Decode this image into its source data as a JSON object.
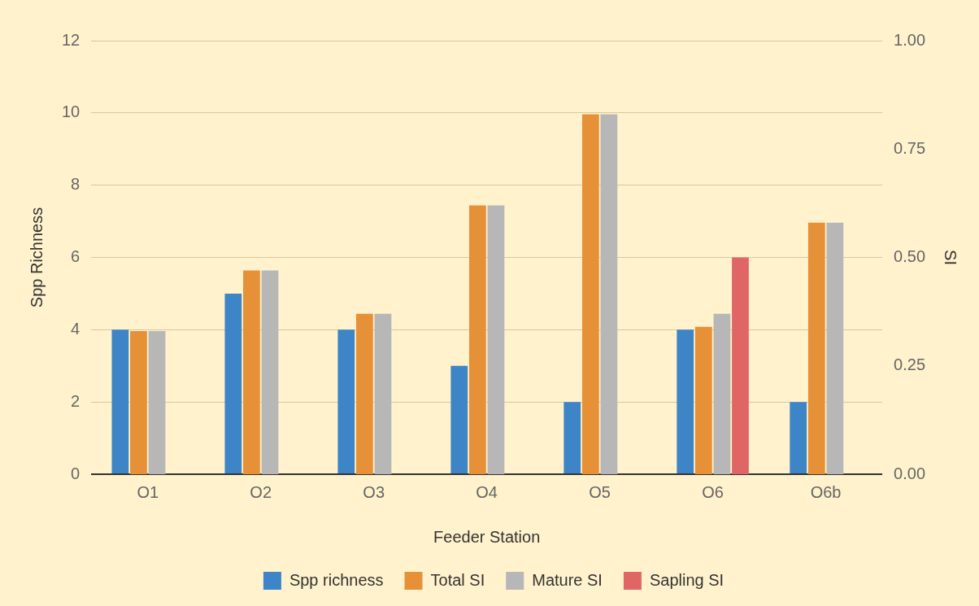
{
  "chart_data": {
    "type": "bar",
    "xlabel": "Feeder Station",
    "ylabel": "Spp Richness",
    "y2label": "SI",
    "categories": [
      "O1",
      "O2",
      "O3",
      "O4",
      "O5",
      "O6",
      "O6b"
    ],
    "series": [
      {
        "name": "Spp richness",
        "color": "#3d85c6",
        "values": [
          4,
          5,
          4,
          3,
          2,
          4,
          2
        ]
      },
      {
        "name": "Total SI",
        "color": "#e69138",
        "axis": "y2",
        "values": [
          0.33,
          0.47,
          0.37,
          0.62,
          0.83,
          0.34,
          0.58
        ]
      },
      {
        "name": "Mature SI",
        "color": "#b7b7b7",
        "axis": "y2",
        "values": [
          0.33,
          0.47,
          0.37,
          0.62,
          0.83,
          0.37,
          0.58
        ]
      },
      {
        "name": "Sapling SI",
        "color": "#e06666",
        "axis": "y2",
        "values": [
          null,
          null,
          null,
          null,
          null,
          0.5,
          null
        ]
      }
    ],
    "ylim": [
      0,
      12
    ],
    "yticks": [
      0,
      2,
      4,
      6,
      8,
      10,
      12
    ],
    "y2lim": [
      0,
      1
    ],
    "y2ticks": [
      {
        "value": 0,
        "label": "0.00"
      },
      {
        "value": 0.25,
        "label": "0.25"
      },
      {
        "value": 0.5,
        "label": "0.50"
      },
      {
        "value": 0.75,
        "label": "0.75"
      },
      {
        "value": 1,
        "label": "1.00"
      }
    ],
    "grid": "y",
    "legend": "bottom"
  }
}
